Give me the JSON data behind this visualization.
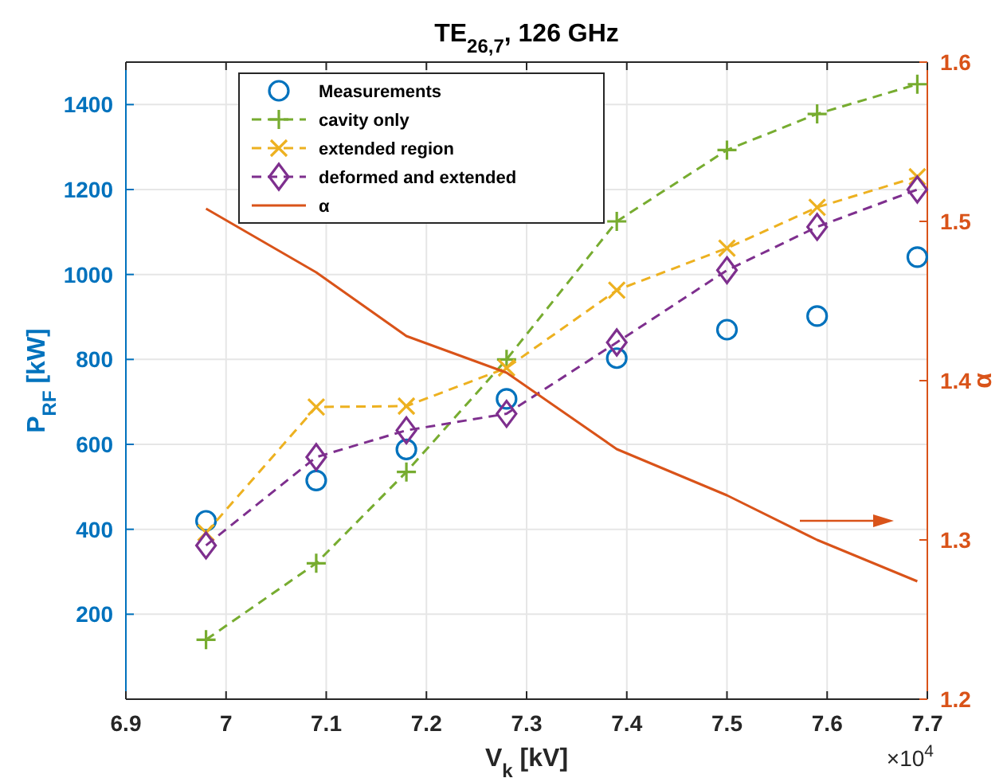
{
  "chart_data": {
    "type": "line",
    "title": "TE$_{26,7}$, 126 GHz",
    "xlabel": "V$_{k}$ [kV]",
    "ylabel": "P$_{RF}$ [kW]",
    "y2label": "α",
    "x": [
      6.98,
      7.09,
      7.18,
      7.28,
      7.39,
      7.5,
      7.59,
      7.69
    ],
    "series": [
      {
        "name": "Measurements",
        "type": "scatter",
        "color": "#0072bd",
        "marker": "circle",
        "values": [
          420,
          515,
          588,
          707,
          803,
          870,
          902,
          1041
        ]
      },
      {
        "name": "cavity only",
        "color": "#77ac30",
        "marker": "cross",
        "line_style": "dashed",
        "values": [
          140,
          320,
          535,
          800,
          1125,
          1293,
          1378,
          1448
        ]
      },
      {
        "name": "extended region",
        "color": "#edb120",
        "marker": "x",
        "line_style": "dashed",
        "values": [
          392,
          688,
          690,
          780,
          963,
          1062,
          1158,
          1230
        ]
      },
      {
        "name": "deformed and extended",
        "color": "#7e2f8e",
        "marker": "diamond",
        "line_style": "dashed",
        "values": [
          362,
          570,
          633,
          672,
          840,
          1010,
          1112,
          1200
        ]
      },
      {
        "name": "α",
        "color": "#d95319",
        "axis": "y2",
        "marker": "none",
        "line_style": "solid",
        "values": [
          1.508,
          1.468,
          1.428,
          1.405,
          1.357,
          1.328,
          1.3,
          1.274
        ]
      }
    ],
    "xlim": [
      6.9,
      7.7
    ],
    "xticks": [
      6.9,
      7,
      7.1,
      7.2,
      7.3,
      7.4,
      7.5,
      7.6,
      7.7
    ],
    "ylim": [
      0,
      1500
    ],
    "yticks": [
      200,
      400,
      600,
      800,
      1000,
      1200,
      1400
    ],
    "y2lim": [
      1.2,
      1.6
    ],
    "y2ticks": [
      1.2,
      1.3,
      1.4,
      1.5,
      1.6
    ],
    "annotations": [
      "×10$^{4}$"
    ],
    "grid": true,
    "legend": "top left"
  }
}
